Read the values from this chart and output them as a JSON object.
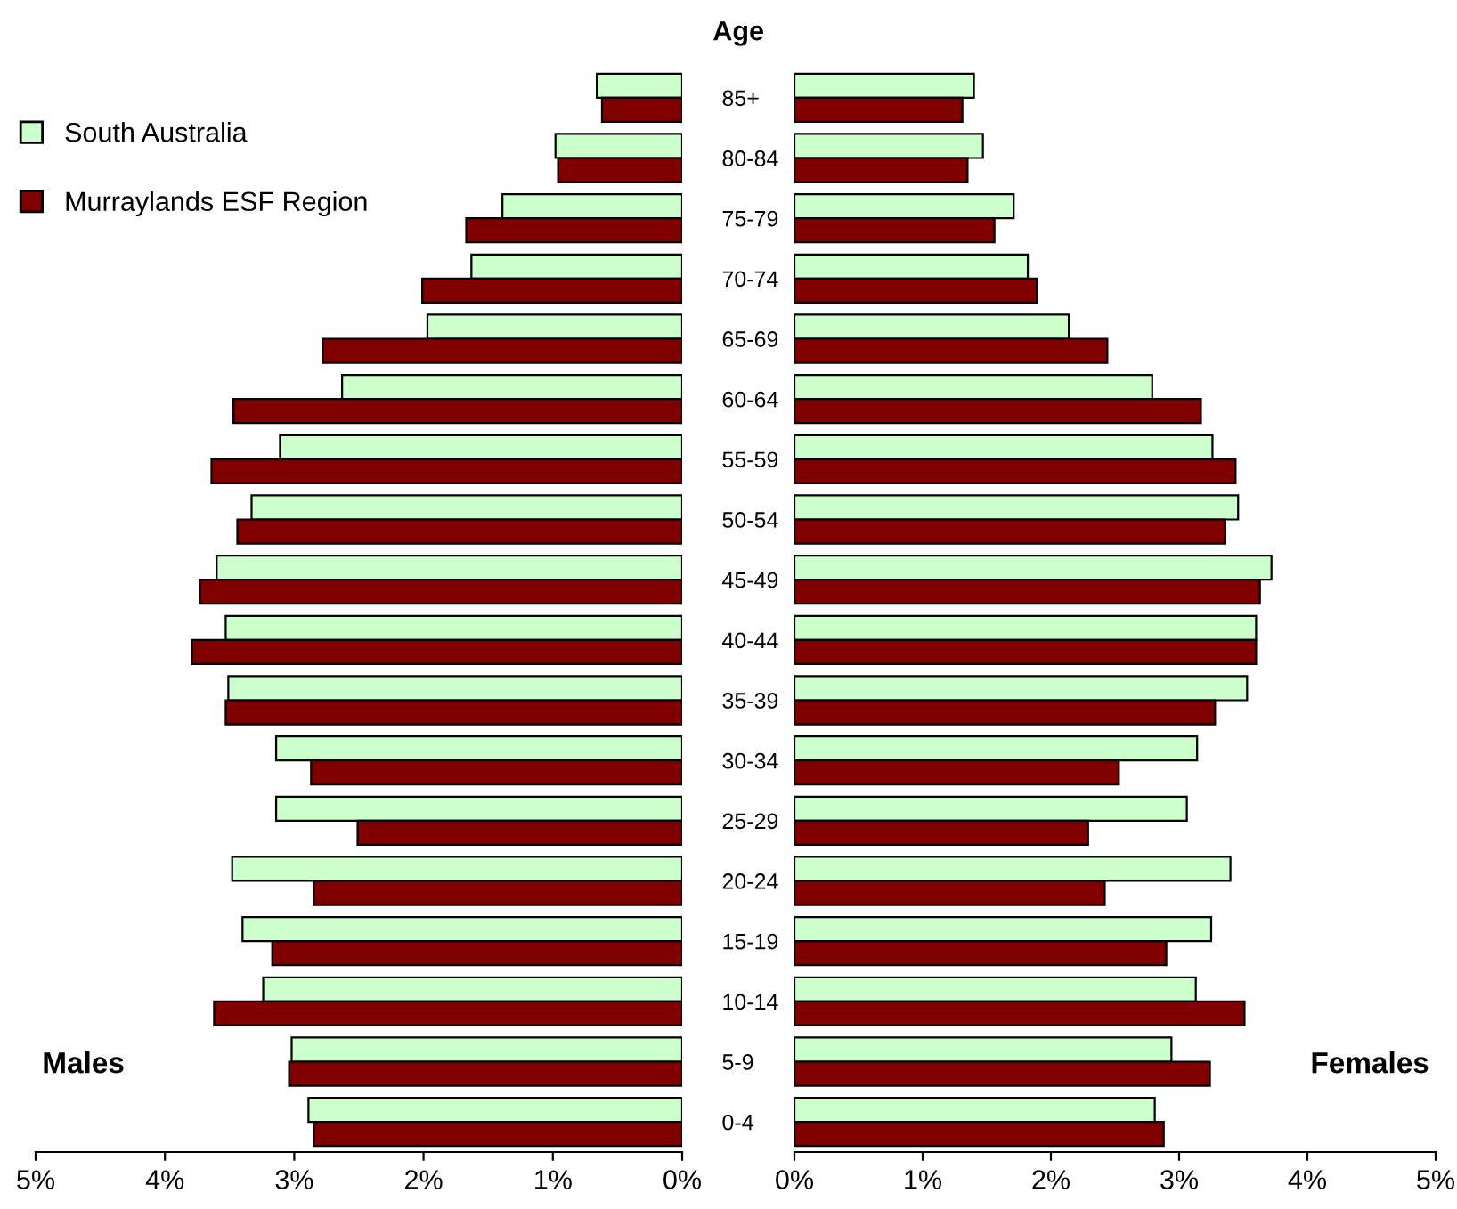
{
  "chart_data": [
    {
      "type": "bar",
      "orientation": "horizontal",
      "ylabel": "Age",
      "legend": "top left",
      "annotations": [
        "Males"
      ],
      "categories": [
        "85+",
        "80-84",
        "75-79",
        "70-74",
        "65-69",
        "60-64",
        "55-59",
        "50-54",
        "45-49",
        "40-44",
        "35-39",
        "30-34",
        "25-29",
        "20-24",
        "15-19",
        "10-14",
        "5-9",
        "0-4"
      ],
      "series": [
        {
          "name": "South Australia",
          "color": "#ccffcc",
          "values": [
            0.66,
            0.98,
            1.39,
            1.63,
            1.97,
            2.63,
            3.11,
            3.33,
            3.6,
            3.53,
            3.51,
            3.14,
            3.14,
            3.48,
            3.4,
            3.24,
            3.02,
            2.89
          ]
        },
        {
          "name": "Murraylands ESF Region",
          "color": "#800000",
          "values": [
            0.62,
            0.96,
            1.67,
            2.01,
            2.78,
            3.47,
            3.64,
            3.44,
            3.73,
            3.79,
            3.53,
            2.87,
            2.51,
            2.85,
            3.17,
            3.62,
            3.04,
            2.85
          ]
        }
      ],
      "xlim": [
        5,
        0
      ],
      "xticks": [
        {
          "value": 5,
          "label": "5%"
        },
        {
          "value": 4,
          "label": "4%"
        },
        {
          "value": 3,
          "label": "3%"
        },
        {
          "value": 2,
          "label": "2%"
        },
        {
          "value": 1,
          "label": "1%"
        },
        {
          "value": 0,
          "label": "0%"
        }
      ]
    },
    {
      "type": "bar",
      "orientation": "horizontal",
      "annotations": [
        "Females"
      ],
      "tick_labels": "x",
      "categories": [
        null,
        null,
        null,
        null,
        null,
        null,
        null,
        null,
        null,
        null,
        null,
        null,
        null,
        null,
        null,
        null,
        null,
        null
      ],
      "series": [
        {
          "color": "#ccffcc",
          "values": [
            1.4,
            1.47,
            1.71,
            1.82,
            2.14,
            2.79,
            3.26,
            3.46,
            3.72,
            3.6,
            3.53,
            3.14,
            3.06,
            3.4,
            3.25,
            3.13,
            2.94,
            2.81
          ]
        },
        {
          "color": "#800000",
          "values": [
            1.31,
            1.35,
            1.56,
            1.89,
            2.44,
            3.17,
            3.44,
            3.36,
            3.63,
            3.6,
            3.28,
            2.53,
            2.29,
            2.42,
            2.9,
            3.51,
            3.24,
            2.88
          ]
        }
      ],
      "xlim": [
        0,
        5
      ],
      "xticks": [
        {
          "value": 0,
          "label": "0%"
        },
        {
          "value": 1,
          "label": "1%"
        },
        {
          "value": 2,
          "label": "2%"
        },
        {
          "value": 3,
          "label": "3%"
        },
        {
          "value": 4,
          "label": "4%"
        },
        {
          "value": 5,
          "label": "5%"
        }
      ]
    }
  ]
}
